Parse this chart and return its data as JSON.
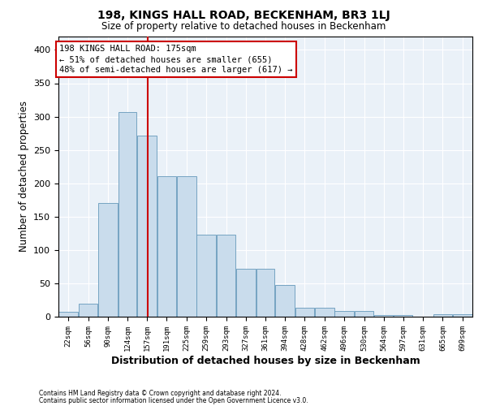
{
  "title": "198, KINGS HALL ROAD, BECKENHAM, BR3 1LJ",
  "subtitle": "Size of property relative to detached houses in Beckenham",
  "xlabel": "Distribution of detached houses by size in Beckenham",
  "ylabel": "Number of detached properties",
  "bar_color": "#c9dcec",
  "bar_edge_color": "#6699bb",
  "background_color": "#eaf1f8",
  "categories": [
    "22sqm",
    "56sqm",
    "90sqm",
    "124sqm",
    "157sqm",
    "191sqm",
    "225sqm",
    "259sqm",
    "293sqm",
    "327sqm",
    "361sqm",
    "394sqm",
    "428sqm",
    "462sqm",
    "496sqm",
    "530sqm",
    "564sqm",
    "597sqm",
    "631sqm",
    "665sqm",
    "699sqm"
  ],
  "bar_heights": [
    7,
    20,
    170,
    307,
    272,
    210,
    210,
    123,
    123,
    72,
    72,
    48,
    14,
    14,
    9,
    9,
    3,
    3,
    0,
    4,
    4
  ],
  "ylim": [
    0,
    420
  ],
  "yticks": [
    0,
    50,
    100,
    150,
    200,
    250,
    300,
    350,
    400
  ],
  "bin_edges": [
    22,
    56,
    90,
    124,
    157,
    191,
    225,
    259,
    293,
    327,
    361,
    394,
    428,
    462,
    496,
    530,
    564,
    597,
    631,
    665,
    699,
    733
  ],
  "vline_x": 175,
  "vline_color": "#cc0000",
  "annotation_title": "198 KINGS HALL ROAD: 175sqm",
  "annotation_line1": "← 51% of detached houses are smaller (655)",
  "annotation_line2": "48% of semi-detached houses are larger (617) →",
  "annotation_box_color": "#ffffff",
  "annotation_box_edge": "#cc0000",
  "footer1": "Contains HM Land Registry data © Crown copyright and database right 2024.",
  "footer2": "Contains public sector information licensed under the Open Government Licence v3.0."
}
